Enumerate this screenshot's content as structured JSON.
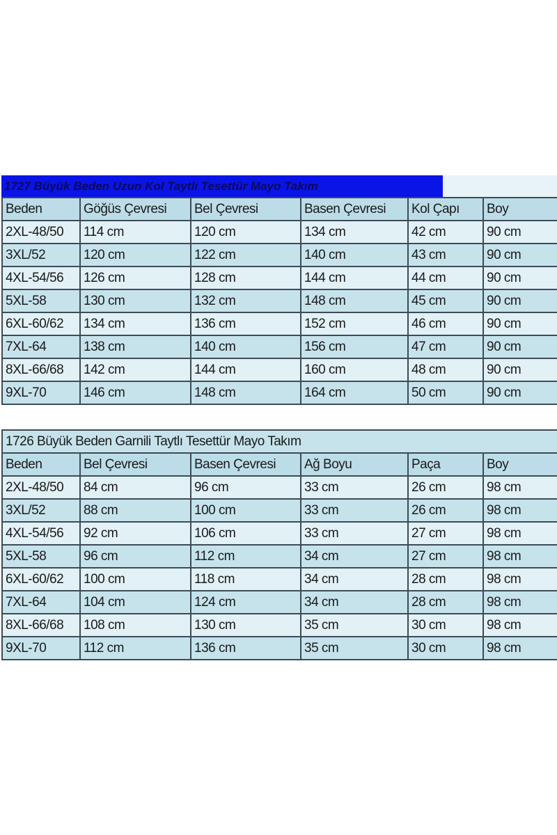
{
  "table1": {
    "title": "1727 Büyük Beden Uzun Kol Taytlı Tesettür Mayo Takım",
    "title_bg": "#0a14e6",
    "headers": [
      "Beden",
      "Göğüs Çevresi",
      "Bel Çevresi",
      "Basen Çevresi",
      "Kol Çapı",
      "Boy"
    ],
    "rows": [
      [
        "2XL-48/50",
        "114 cm",
        "120 cm",
        "134 cm",
        "42 cm",
        "90 cm"
      ],
      [
        "3XL/52",
        "120 cm",
        "122 cm",
        "140 cm",
        "43 cm",
        "90 cm"
      ],
      [
        "4XL-54/56",
        "126 cm",
        "128 cm",
        "144 cm",
        "44 cm",
        "90 cm"
      ],
      [
        "5XL-58",
        "130 cm",
        "132 cm",
        "148 cm",
        "45 cm",
        "90 cm"
      ],
      [
        "6XL-60/62",
        "134 cm",
        "136 cm",
        "152 cm",
        "46 cm",
        "90 cm"
      ],
      [
        "7XL-64",
        "138 cm",
        "140 cm",
        "156 cm",
        "47 cm",
        "90 cm"
      ],
      [
        "8XL-66/68",
        "142 cm",
        "144 cm",
        "160 cm",
        "48 cm",
        "90 cm"
      ],
      [
        "9XL-70",
        "146 cm",
        "148 cm",
        "164 cm",
        "50 cm",
        "90 cm"
      ]
    ]
  },
  "table2": {
    "title": "1726 Büyük Beden Garnili Taytlı Tesettür Mayo Takım",
    "headers": [
      "Beden",
      "Bel Çevresi",
      "Basen Çevresi",
      "Ağ Boyu",
      "Paça",
      "Boy"
    ],
    "rows": [
      [
        "2XL-48/50",
        "84 cm",
        "96 cm",
        "33 cm",
        "26 cm",
        "98 cm"
      ],
      [
        "3XL/52",
        "88 cm",
        "100 cm",
        "33 cm",
        "26 cm",
        "98 cm"
      ],
      [
        "4XL-54/56",
        "92 cm",
        "106 cm",
        "33 cm",
        "27 cm",
        "98 cm"
      ],
      [
        "5XL-58",
        "96 cm",
        "112 cm",
        "34 cm",
        "27 cm",
        "98 cm"
      ],
      [
        "6XL-60/62",
        "100 cm",
        "118 cm",
        "34 cm",
        "28 cm",
        "98 cm"
      ],
      [
        "7XL-64",
        "104 cm",
        "124 cm",
        "34 cm",
        "28 cm",
        "98 cm"
      ],
      [
        "8XL-66/68",
        "108 cm",
        "130 cm",
        "35 cm",
        "30 cm",
        "98 cm"
      ],
      [
        "9XL-70",
        "112 cm",
        "136 cm",
        "35 cm",
        "30 cm",
        "98 cm"
      ]
    ]
  }
}
